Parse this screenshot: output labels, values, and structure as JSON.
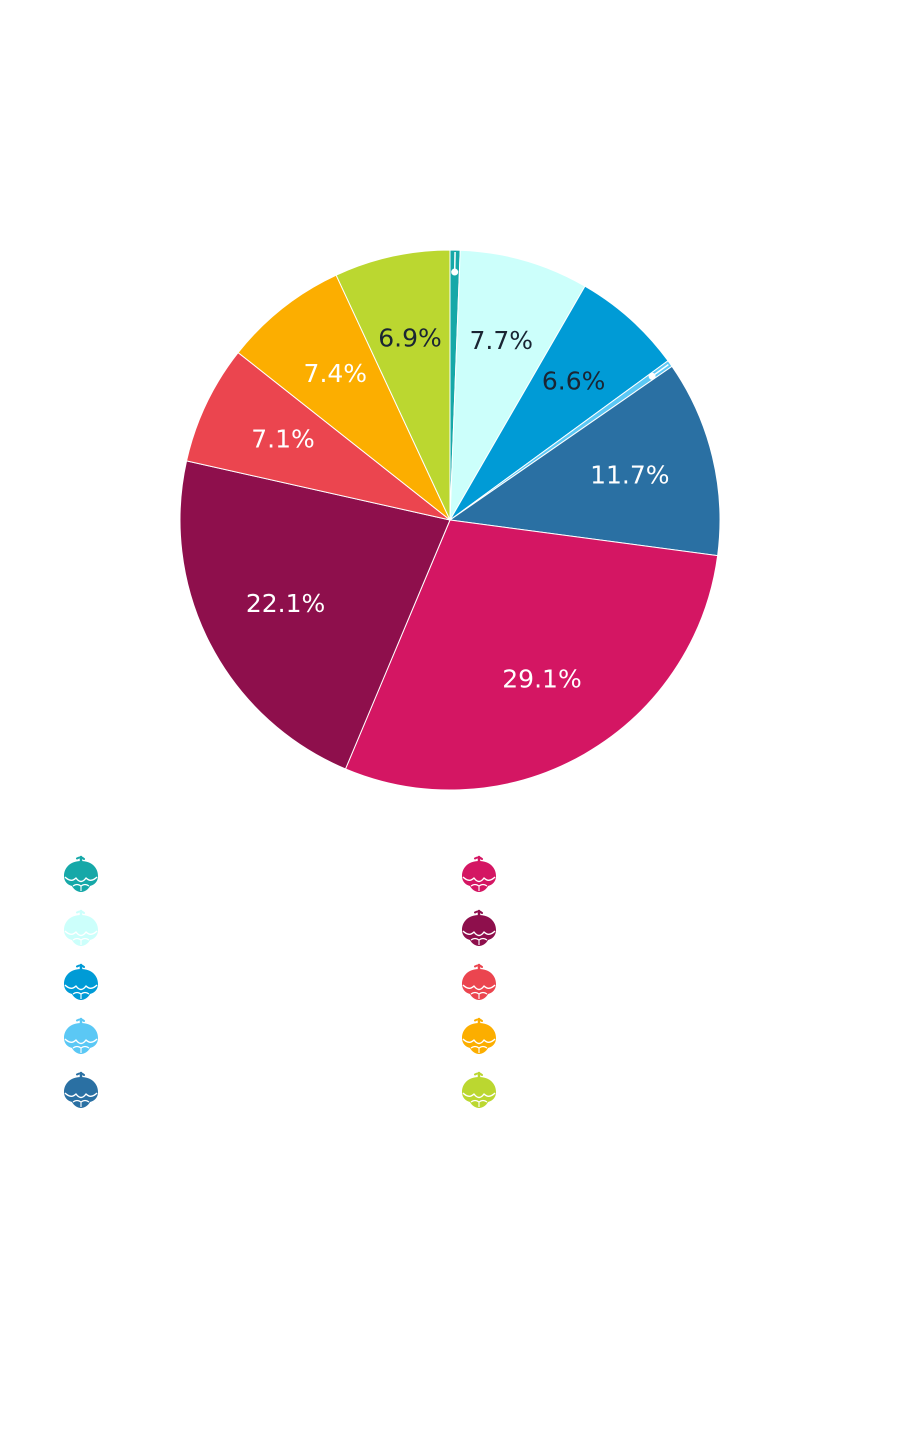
{
  "chart_data": {
    "type": "pie",
    "start_angle": "top",
    "direction": "clockwise",
    "slices": [
      {
        "value": 0.6,
        "label": "",
        "color": "#16A8A8",
        "label_color": "#1a2533"
      },
      {
        "value": 7.7,
        "label": "7.7%",
        "color": "#CCFFFB",
        "label_color": "#1a2533"
      },
      {
        "value": 6.6,
        "label": "6.6%",
        "color": "#009BD6",
        "label_color": "#1a2533"
      },
      {
        "value": 0.4,
        "label": "",
        "color": "#5BC8F5",
        "label_color": "#1a2533"
      },
      {
        "value": 11.7,
        "label": "11.7%",
        "color": "#2A70A3",
        "label_color": "#ffffff"
      },
      {
        "value": 29.1,
        "label": "29.1%",
        "color": "#D41663",
        "label_color": "#ffffff"
      },
      {
        "value": 22.1,
        "label": "22.1%",
        "color": "#8E0F4C",
        "label_color": "#ffffff"
      },
      {
        "value": 7.1,
        "label": "7.1%",
        "color": "#EB454F",
        "label_color": "#ffffff"
      },
      {
        "value": 7.4,
        "label": "7.4%",
        "color": "#FCAE00",
        "label_color": "#ffffff"
      },
      {
        "value": 6.9,
        "label": "6.9%",
        "color": "#BBD730",
        "label_color": "#1a2533"
      }
    ],
    "legend": {
      "placement": "bottom",
      "icon": "hop-cone-icon",
      "columns": [
        [
          "#16A8A8",
          "#CCFFFB",
          "#009BD6",
          "#5BC8F5",
          "#2A70A3"
        ],
        [
          "#D41663",
          "#8E0F4C",
          "#EB454F",
          "#FCAE00",
          "#BBD730"
        ]
      ]
    }
  }
}
